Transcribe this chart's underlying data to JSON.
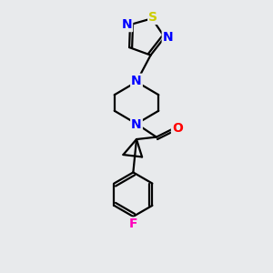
{
  "background_color": "#e8eaec",
  "bond_color": "#000000",
  "n_color": "#0000ff",
  "s_color": "#cccc00",
  "o_color": "#ff0000",
  "f_color": "#ff00bb",
  "bond_width": 1.6,
  "font_size_atom": 10,
  "fig_width": 3.0,
  "fig_height": 3.0,
  "dpi": 100,
  "xlim": [
    -0.7,
    0.7
  ],
  "ylim": [
    -1.35,
    1.1
  ]
}
